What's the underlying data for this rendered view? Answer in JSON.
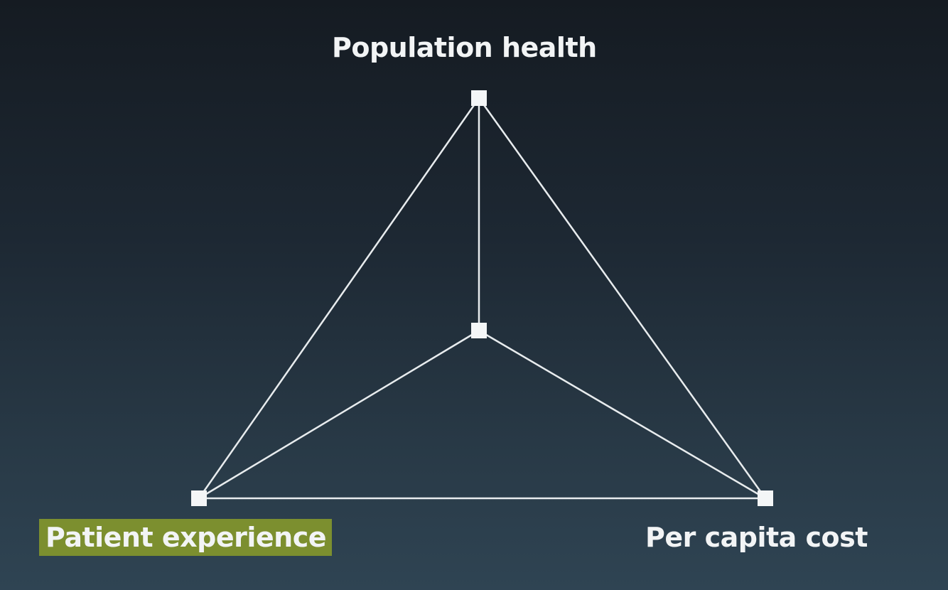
{
  "diagram": {
    "nodes": {
      "top": {
        "label": "Population health"
      },
      "left": {
        "label": "Patient experience",
        "highlighted": true
      },
      "right": {
        "label": "Per capita cost"
      },
      "center": {
        "label": ""
      }
    },
    "colors": {
      "line": "#e8ecee",
      "node": "#f4f6f7",
      "highlight": "#7c8f2f",
      "text": "#f2f4f5"
    }
  }
}
